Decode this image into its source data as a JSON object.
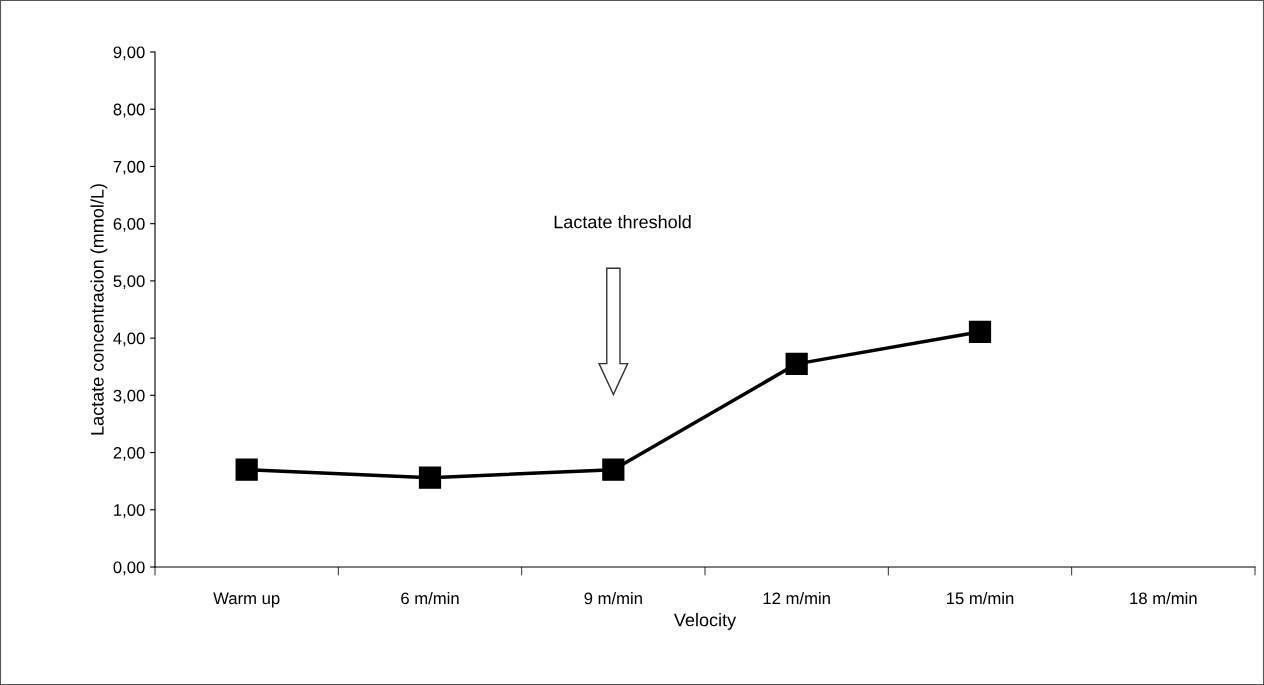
{
  "chart_data": {
    "type": "line",
    "xlabel": "Velocity",
    "ylabel": "Lactate concentracion (mmol/L)",
    "categories": [
      "Warm up",
      "6 m/min",
      "9 m/min",
      "12 m/min",
      "15 m/min",
      "18 m/min"
    ],
    "series": [
      {
        "color": "#000000",
        "values": [
          1.7,
          1.56,
          1.7,
          3.55,
          4.11,
          null
        ]
      }
    ],
    "marker": "square",
    "line_style": "solid",
    "ylim": [
      0,
      9
    ],
    "yticks": [
      {
        "value": 0,
        "label": "0,00"
      },
      {
        "value": 1,
        "label": "1,00"
      },
      {
        "value": 2,
        "label": "2,00"
      },
      {
        "value": 3,
        "label": "3,00"
      },
      {
        "value": 4,
        "label": "4,00"
      },
      {
        "value": 5,
        "label": "5,00"
      },
      {
        "value": 6,
        "label": "6,00"
      },
      {
        "value": 7,
        "label": "7,00"
      },
      {
        "value": 8,
        "label": "8,00"
      },
      {
        "value": 9,
        "label": "9,00"
      }
    ],
    "annotations": [
      "Lactate threshold"
    ],
    "grid": false,
    "legend": false
  }
}
